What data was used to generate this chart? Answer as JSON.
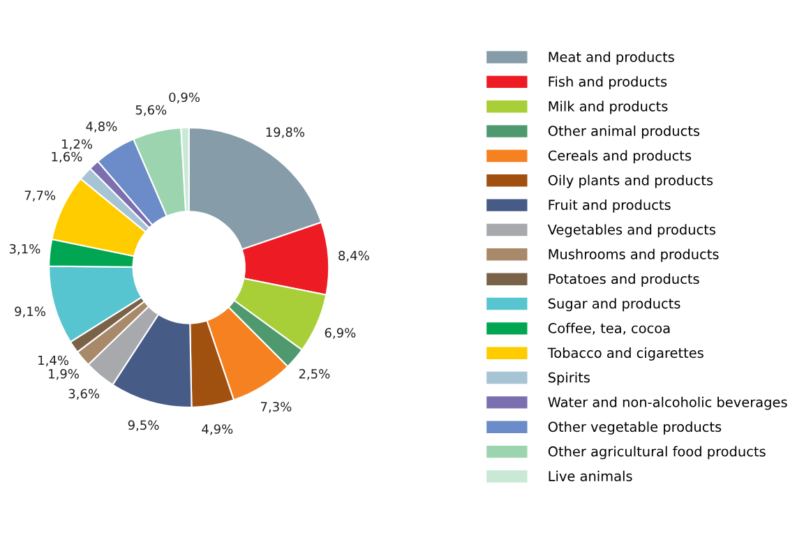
{
  "chart_data": {
    "type": "donut",
    "categories": [
      "Meat and products",
      "Fish and products",
      "Milk and products",
      "Other animal products",
      "Cereals and products",
      "Oily plants and products",
      "Fruit and products",
      "Vegetables and products",
      "Mushrooms and products",
      "Potatoes and products",
      "Sugar and products",
      "Coffee, tea, cocoa",
      "Tobacco and cigarettes",
      "Spirits",
      "Water and non-alcoholic beverages",
      "Other vegetable products",
      "Other agricultural food products",
      "Live animals"
    ],
    "values": [
      19.8,
      8.4,
      6.9,
      2.5,
      7.3,
      4.9,
      9.5,
      3.6,
      1.9,
      1.4,
      9.1,
      3.1,
      7.7,
      1.6,
      1.2,
      4.8,
      5.6,
      0.9
    ],
    "value_labels": [
      "19,8%",
      "8,4%",
      "6,9%",
      "2,5%",
      "7,3%",
      "4,9%",
      "9,5%",
      "3,6%",
      "1,9%",
      "1,4%",
      "9,1%",
      "3,1%",
      "7,7%",
      "1,6%",
      "1,2%",
      "4,8%",
      "5,6%",
      "0,9%"
    ],
    "colors": [
      "#869ca8",
      "#ed1c24",
      "#a8cf38",
      "#4e9a6e",
      "#f68121",
      "#a0500f",
      "#475b87",
      "#a7a9ac",
      "#a88a6a",
      "#7a6248",
      "#56c5d0",
      "#00a651",
      "#ffcc00",
      "#a6c4d4",
      "#7c6fb0",
      "#6b8cc8",
      "#9dd4b0",
      "#c9e8d6"
    ],
    "legend": "right"
  }
}
